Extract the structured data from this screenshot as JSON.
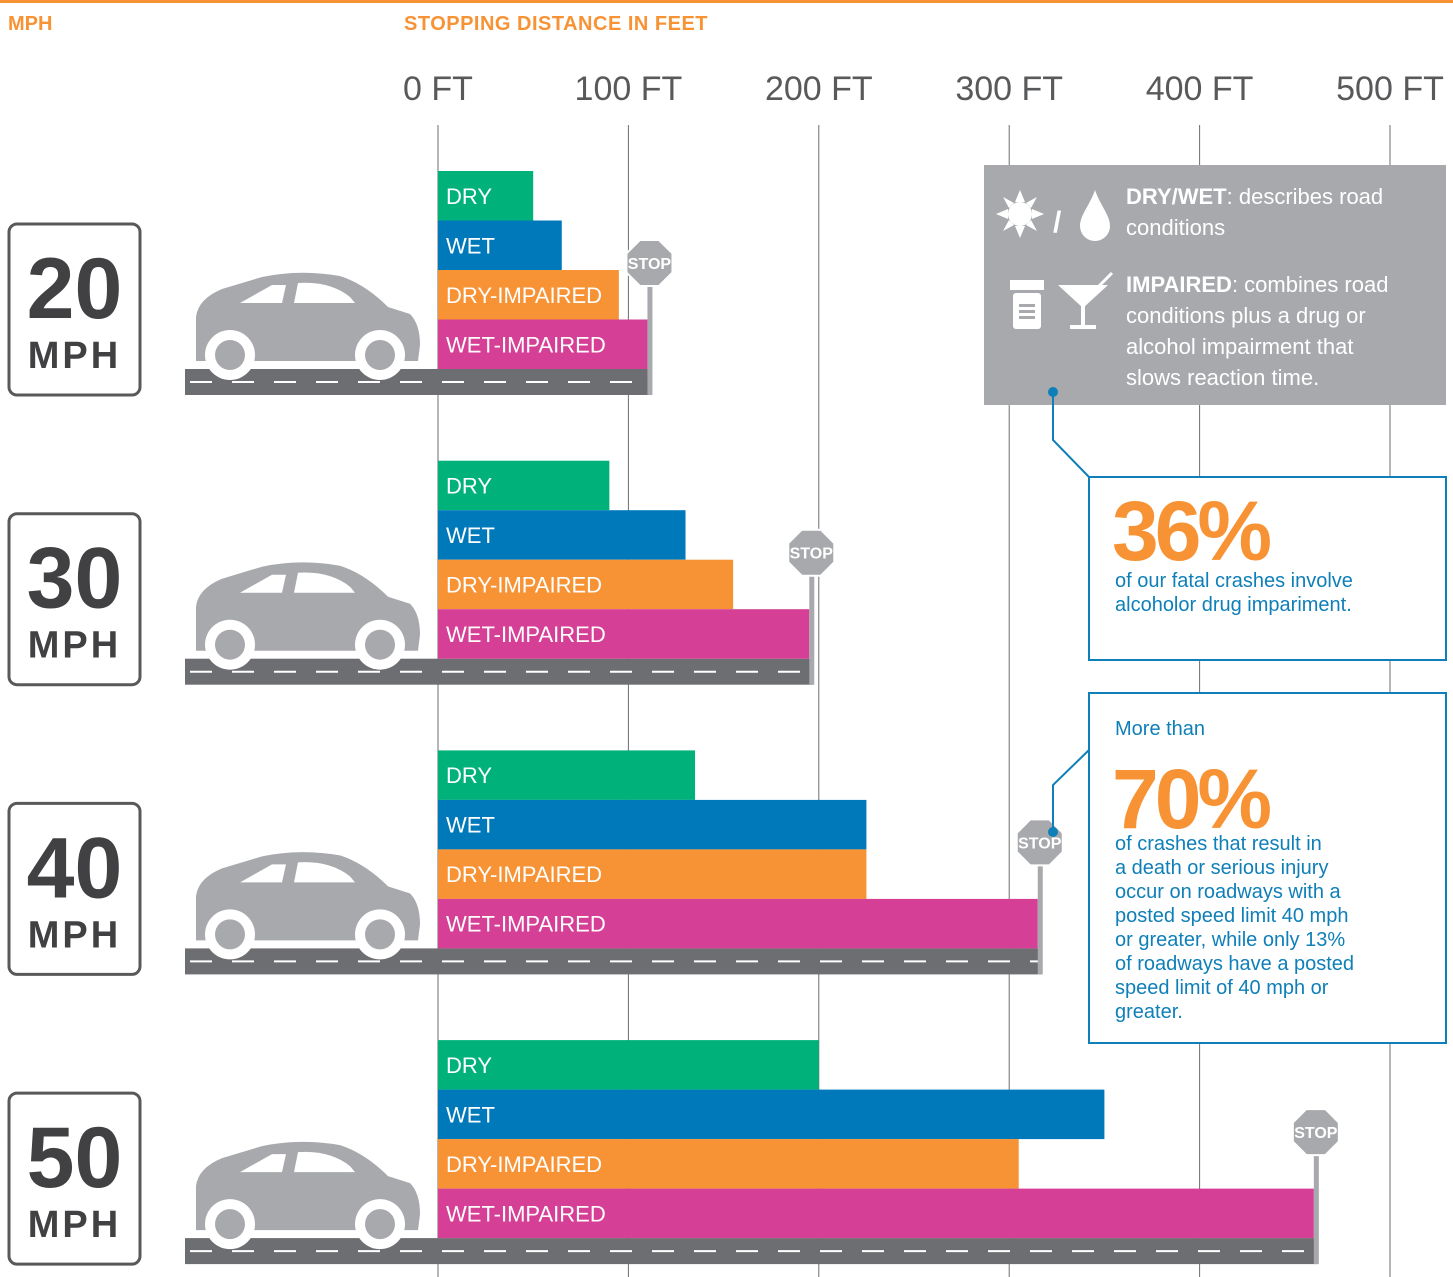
{
  "chart_data": {
    "type": "bar",
    "orientation": "horizontal",
    "y_label": "MPH",
    "x_label": "STOPPING DISTANCE IN FEET",
    "categories": [
      "20",
      "30",
      "40",
      "50"
    ],
    "category_unit": "MPH",
    "xlim": [
      0,
      500
    ],
    "xticks": [
      {
        "value": 0,
        "label": "0 FT"
      },
      {
        "value": 100,
        "label": "100 FT"
      },
      {
        "value": 200,
        "label": "200 FT"
      },
      {
        "value": 300,
        "label": "300 FT"
      },
      {
        "value": 400,
        "label": "400 FT"
      },
      {
        "value": 500,
        "label": "500 FT"
      }
    ],
    "grid": true,
    "series": [
      {
        "name": "DRY",
        "color": "#00b27a",
        "values": [
          50,
          90,
          135,
          200
        ]
      },
      {
        "name": "WET",
        "color": "#0079bb",
        "values": [
          65,
          130,
          225,
          350
        ]
      },
      {
        "name": "DRY-IMPAIRED",
        "color": "#f79334",
        "values": [
          95,
          155,
          225,
          305
        ]
      },
      {
        "name": "WET-IMPAIRED",
        "color": "#d63f96",
        "values": [
          110,
          195,
          315,
          460
        ]
      }
    ],
    "stop_label": "STOP",
    "legend": {
      "items": [
        {
          "term": "DRY/WET",
          "text_lines": [
            ": describes road",
            "conditions"
          ]
        },
        {
          "term": "IMPAIRED",
          "text_lines": [
            ": combines road",
            "conditions plus a drug or",
            "alcohol impairment that",
            "slows reaction time."
          ]
        }
      ]
    },
    "annotations": [
      {
        "value_label": "36%",
        "text_lines": [
          "of our fatal crashes involve",
          "alcoholor drug impariment."
        ]
      },
      {
        "intro": "More than",
        "value_label": "70%",
        "text_lines": [
          "of crashes that result in",
          "a death or serious injury",
          "occur on roadways with a",
          "posted speed limit 40 mph",
          "or greater, while only 13%",
          "of roadways have a posted",
          "speed limit of 40 mph or",
          "greater."
        ]
      }
    ]
  }
}
